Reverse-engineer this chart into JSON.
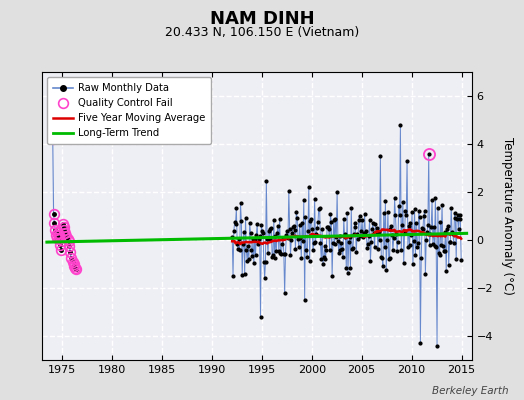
{
  "title": "NAM DINH",
  "subtitle": "20.433 N, 106.150 E (Vietnam)",
  "ylabel": "Temperature Anomaly (°C)",
  "credit": "Berkeley Earth",
  "xlim": [
    1973,
    2016
  ],
  "ylim": [
    -5,
    7
  ],
  "yticks": [
    -4,
    -2,
    0,
    2,
    4,
    6
  ],
  "xticks": [
    1975,
    1980,
    1985,
    1990,
    1995,
    2000,
    2005,
    2010,
    2015
  ],
  "fig_bg_color": "#e0e0e0",
  "plot_bg_color": "#eeeef5",
  "grid_color": "#ffffff",
  "raw_line_color": "#6688cc",
  "raw_marker_color": "#000000",
  "qc_fail_color": "#ff44cc",
  "moving_avg_color": "#dd0000",
  "trend_color": "#00bb00",
  "early_years": [
    1974.083,
    1974.167,
    1974.25,
    1974.333,
    1974.417,
    1974.5,
    1974.583,
    1974.667,
    1974.75,
    1974.833,
    1974.917,
    1975.083,
    1975.167,
    1975.25,
    1975.333,
    1975.417,
    1975.583,
    1975.667,
    1975.75,
    1975.833,
    1975.917,
    1976.083,
    1976.167,
    1976.25,
    1976.333,
    1976.417
  ],
  "early_values": [
    4.2,
    1.1,
    0.7,
    0.4,
    0.2,
    0.1,
    0.3,
    0.2,
    0.05,
    -0.2,
    -0.4,
    0.65,
    0.55,
    0.4,
    0.3,
    0.15,
    0.05,
    -0.05,
    -0.25,
    -0.5,
    -0.75,
    -0.9,
    -1.0,
    -1.1,
    -1.15,
    -1.2
  ],
  "qc_late_year": 2011.75,
  "qc_late_val": 3.6,
  "trend_x": [
    1973.5,
    2015.5
  ],
  "trend_y": [
    0.12,
    0.22
  ],
  "legend_loc": "upper left"
}
